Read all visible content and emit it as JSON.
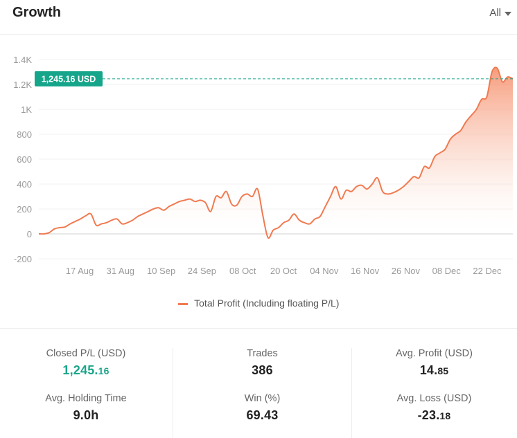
{
  "header": {
    "title": "Growth",
    "range_label": "All"
  },
  "chart_data": {
    "type": "area",
    "yticks": [
      "1.4K",
      "1.2K",
      "1K",
      "800",
      "600",
      "400",
      "200",
      "0",
      "-200"
    ],
    "yvalues": [
      1400,
      1200,
      1000,
      800,
      600,
      400,
      200,
      0,
      -200
    ],
    "ylim": [
      -200,
      1400
    ],
    "xticks": [
      "17 Aug",
      "31 Aug",
      "10 Sep",
      "24 Sep",
      "08 Oct",
      "20 Oct",
      "04 Nov",
      "16 Nov",
      "26 Nov",
      "08 Dec",
      "22 Dec"
    ],
    "current_value_label": "1,245.16 USD",
    "current_value": 1245.16,
    "legend_position": "bottom-center",
    "series": [
      {
        "name": "Total Profit (Including floating P/L)",
        "color": "#f07a50",
        "values": [
          0,
          0,
          10,
          40,
          50,
          55,
          80,
          100,
          120,
          145,
          160,
          70,
          80,
          90,
          110,
          120,
          80,
          90,
          110,
          140,
          160,
          180,
          200,
          210,
          190,
          220,
          240,
          260,
          270,
          280,
          260,
          270,
          250,
          180,
          300,
          290,
          340,
          240,
          230,
          300,
          320,
          300,
          360,
          150,
          -30,
          30,
          50,
          90,
          110,
          160,
          110,
          90,
          80,
          120,
          140,
          220,
          300,
          380,
          280,
          350,
          340,
          380,
          390,
          360,
          400,
          450,
          340,
          320,
          330,
          350,
          380,
          420,
          460,
          450,
          540,
          530,
          620,
          650,
          680,
          760,
          800,
          830,
          900,
          950,
          1000,
          1080,
          1100,
          1300,
          1330,
          1220,
          1260,
          1245
        ]
      }
    ]
  },
  "stats": {
    "closed_pl": {
      "label": "Closed P/L (USD)",
      "int": "1,245.",
      "frac": "16"
    },
    "trades": {
      "label": "Trades",
      "value": "386"
    },
    "avg_profit": {
      "label": "Avg. Profit (USD)",
      "int": "14.",
      "frac": "85"
    },
    "avg_holding": {
      "label": "Avg. Holding Time",
      "value": "9.0h"
    },
    "win": {
      "label": "Win (%)",
      "value": "69.43"
    },
    "avg_loss": {
      "label": "Avg. Loss (USD)",
      "int": "-23.",
      "frac": "18"
    }
  }
}
